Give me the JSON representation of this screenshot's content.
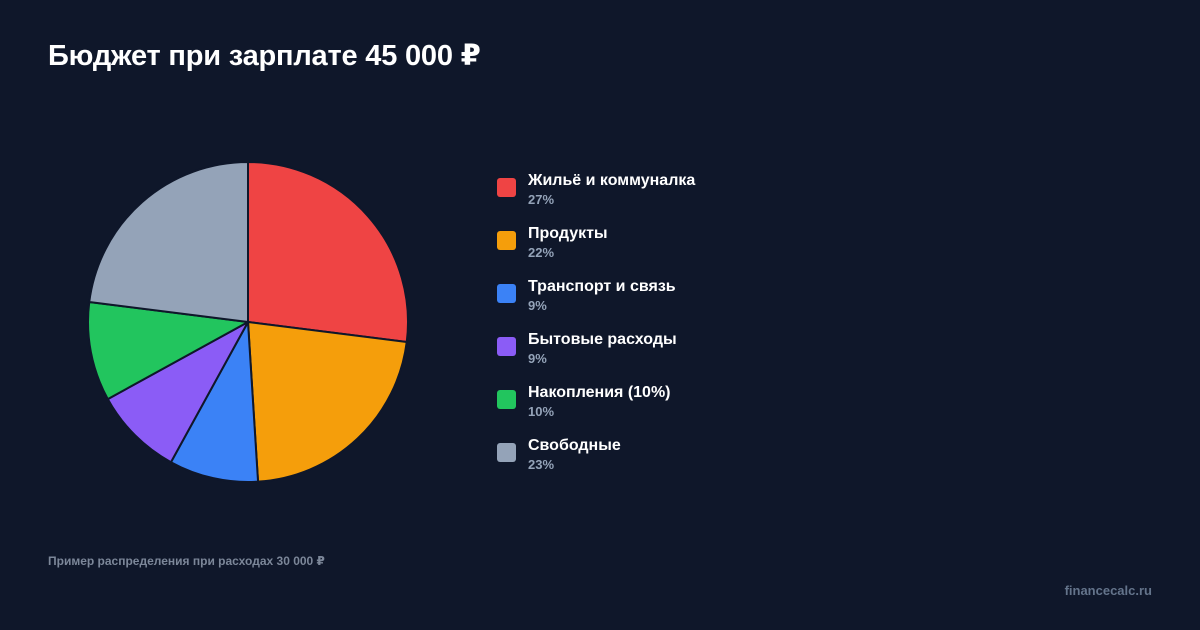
{
  "title": "Бюджет при зарплате 45 000 ₽",
  "footnote": "Пример распределения при расходах 30 000 ₽",
  "site": "financecalc.ru",
  "colors": {
    "background": "#0f172a",
    "slice_stroke": "#0f172a"
  },
  "chart_data": {
    "type": "pie",
    "title": "Бюджет при зарплате 45 000 ₽",
    "legend_position": "right",
    "slices": [
      {
        "label": "Жильё и коммуналка",
        "value": 27,
        "value_label": "27%",
        "color": "#ef4444"
      },
      {
        "label": "Продукты",
        "value": 22,
        "value_label": "22%",
        "color": "#f59e0b"
      },
      {
        "label": "Транспорт и связь",
        "value": 9,
        "value_label": "9%",
        "color": "#3b82f6"
      },
      {
        "label": "Бытовые расходы",
        "value": 9,
        "value_label": "9%",
        "color": "#8b5cf6"
      },
      {
        "label": "Накопления (10%)",
        "value": 10,
        "value_label": "10%",
        "color": "#22c55e"
      },
      {
        "label": "Свободные",
        "value": 23,
        "value_label": "23%",
        "color": "#94a3b8"
      }
    ]
  }
}
